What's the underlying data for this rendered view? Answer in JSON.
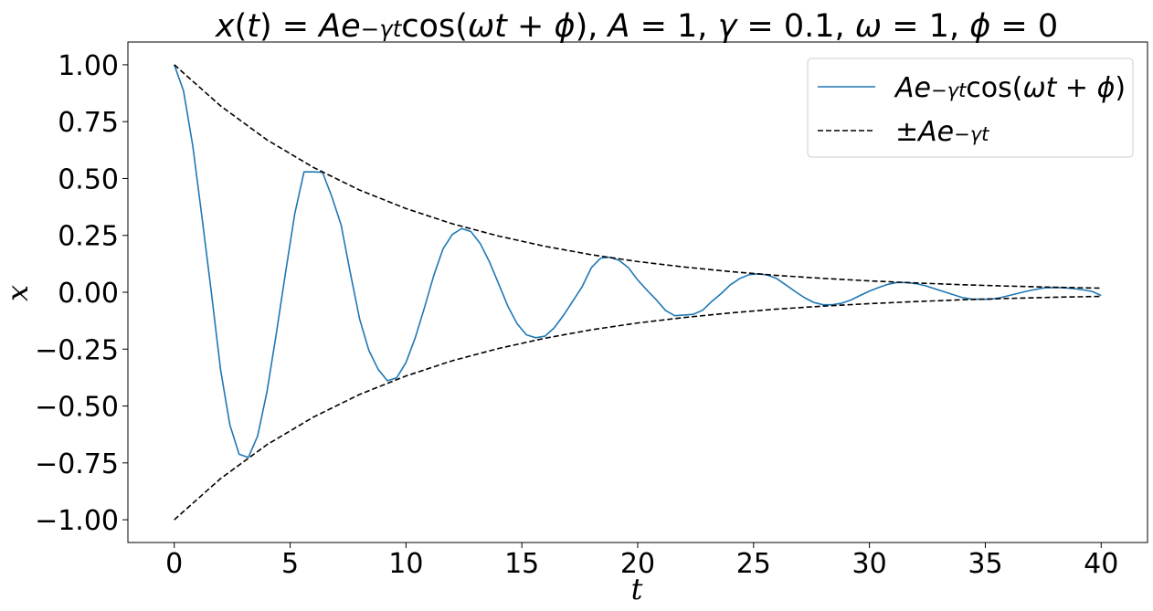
{
  "chart_data": {
    "type": "line",
    "title": "x(t) = Ae^{−γt}cos(ωt + ϕ), A = 1, γ = 0.1, ω = 1, ϕ = 0",
    "xlabel": "t",
    "ylabel": "x",
    "xlim": [
      -2,
      42
    ],
    "ylim": [
      -1.1,
      1.1
    ],
    "xticks": [
      0,
      5,
      10,
      15,
      20,
      25,
      30,
      35,
      40
    ],
    "xtick_labels": [
      "0",
      "5",
      "10",
      "15",
      "20",
      "25",
      "30",
      "35",
      "40"
    ],
    "yticks": [
      1.0,
      0.75,
      0.5,
      0.25,
      0.0,
      -0.25,
      -0.5,
      -0.75,
      -1.0
    ],
    "ytick_labels": [
      "1.00",
      "0.75",
      "0.50",
      "0.25",
      "0.00",
      "−0.25",
      "−0.50",
      "−0.75",
      "−1.00"
    ],
    "grid": false,
    "legend": {
      "placement": "top-right",
      "entries": [
        "Ae^{−γt}cos(ωt + ϕ)",
        "±Ae^{−γt}"
      ]
    },
    "series": [
      {
        "name": "Ae^{−γt}cos(ωt + ϕ)",
        "color": "#1f77b4",
        "style": "solid",
        "x": [
          0,
          0.4,
          0.8,
          1.2,
          1.6,
          2.0,
          2.4,
          2.8,
          3.2,
          3.6,
          4.0,
          4.4,
          4.8,
          5.2,
          5.6,
          6.0,
          6.4,
          6.8,
          7.2,
          7.6,
          8.0,
          8.4,
          8.8,
          9.2,
          9.6,
          10.0,
          10.4,
          10.8,
          11.2,
          11.6,
          12.0,
          12.4,
          12.8,
          13.2,
          13.6,
          14.0,
          14.4,
          14.8,
          15.2,
          15.6,
          16.0,
          16.4,
          16.8,
          17.2,
          17.6,
          18.0,
          18.4,
          18.8,
          19.2,
          19.6,
          20.0,
          20.4,
          20.8,
          21.2,
          21.6,
          22.0,
          22.4,
          22.8,
          23.2,
          23.6,
          24.0,
          24.4,
          24.8,
          25.2,
          25.6,
          26.0,
          26.4,
          26.8,
          27.2,
          27.6,
          28.0,
          28.4,
          28.8,
          29.2,
          29.6,
          30.0,
          30.4,
          30.8,
          31.2,
          31.6,
          32.0,
          32.4,
          32.8,
          33.2,
          33.6,
          34.0,
          34.4,
          34.8,
          35.2,
          35.6,
          36.0,
          36.4,
          36.8,
          37.2,
          37.6,
          38.0,
          38.4,
          38.8,
          39.2,
          39.6,
          40.0
        ],
        "y": [
          1.0,
          0.885,
          0.643,
          0.327,
          -0.0,
          -0.341,
          -0.583,
          -0.712,
          -0.726,
          -0.631,
          -0.438,
          -0.184,
          0.085,
          0.345,
          0.529,
          0.529,
          0.527,
          0.42,
          0.296,
          0.084,
          -0.118,
          -0.256,
          -0.339,
          -0.389,
          -0.376,
          -0.309,
          -0.2,
          -0.067,
          0.074,
          0.191,
          0.254,
          0.28,
          0.267,
          0.215,
          0.134,
          0.037,
          -0.062,
          -0.139,
          -0.187,
          -0.2,
          -0.193,
          -0.156,
          -0.101,
          -0.039,
          0.024,
          0.108,
          0.15,
          0.154,
          0.14,
          0.108,
          0.054,
          0.009,
          -0.033,
          -0.08,
          -0.103,
          -0.1,
          -0.097,
          -0.079,
          -0.04,
          -0.006,
          0.033,
          0.06,
          0.077,
          0.081,
          0.076,
          0.06,
          0.032,
          0.003,
          -0.024,
          -0.045,
          -0.055,
          -0.055,
          -0.048,
          -0.034,
          -0.014,
          0.005,
          0.021,
          0.035,
          0.043,
          0.043,
          0.038,
          0.029,
          0.016,
          0.003,
          -0.01,
          -0.023,
          -0.03,
          -0.031,
          -0.031,
          -0.025,
          -0.015,
          -0.005,
          0.005,
          0.013,
          0.02,
          0.021,
          0.02,
          0.016,
          0.011,
          0.004,
          -0.014
        ]
      },
      {
        "name": "+Ae^{−γt}",
        "color": "#000000",
        "style": "dashed",
        "x": [
          0,
          2,
          4,
          6,
          8,
          10,
          12,
          14,
          16,
          18,
          20,
          22,
          24,
          26,
          28,
          30,
          32,
          34,
          36,
          38,
          40
        ],
        "y": [
          1.0,
          0.819,
          0.67,
          0.549,
          0.449,
          0.368,
          0.301,
          0.247,
          0.202,
          0.165,
          0.135,
          0.111,
          0.091,
          0.074,
          0.061,
          0.05,
          0.041,
          0.033,
          0.027,
          0.022,
          0.018
        ]
      },
      {
        "name": "−Ae^{−γt}",
        "color": "#000000",
        "style": "dashed",
        "x": [
          0,
          2,
          4,
          6,
          8,
          10,
          12,
          14,
          16,
          18,
          20,
          22,
          24,
          26,
          28,
          30,
          32,
          34,
          36,
          38,
          40
        ],
        "y": [
          -1.0,
          -0.819,
          -0.67,
          -0.549,
          -0.449,
          -0.368,
          -0.301,
          -0.247,
          -0.202,
          -0.165,
          -0.135,
          -0.111,
          -0.091,
          -0.074,
          -0.061,
          -0.05,
          -0.041,
          -0.033,
          -0.027,
          -0.022,
          -0.018
        ]
      }
    ]
  }
}
